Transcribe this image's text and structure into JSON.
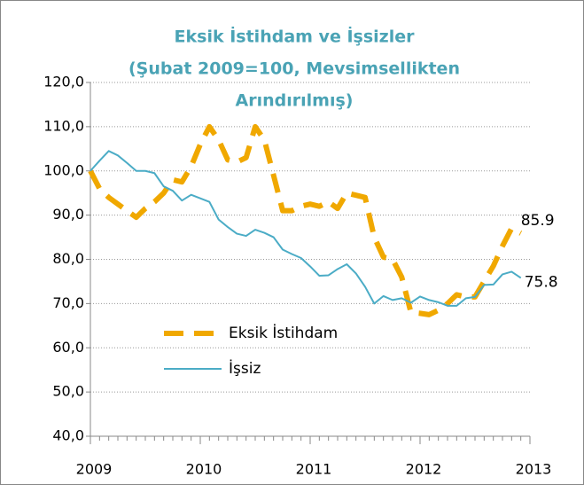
{
  "chart_data": {
    "type": "line",
    "title": [
      "Eksik İstihdam ve İşsizler",
      "(Şubat 2009=100, Mevsimsellikten",
      "Arındırılmış)"
    ],
    "x": [
      2009,
      2009.083,
      2009.167,
      2009.25,
      2009.333,
      2009.417,
      2009.5,
      2009.583,
      2009.667,
      2009.75,
      2009.833,
      2009.917,
      2010,
      2010.083,
      2010.167,
      2010.25,
      2010.333,
      2010.417,
      2010.5,
      2010.583,
      2010.667,
      2010.75,
      2010.833,
      2010.917,
      2011,
      2011.083,
      2011.167,
      2011.25,
      2011.333,
      2011.417,
      2011.5,
      2011.583,
      2011.667,
      2011.75,
      2011.833,
      2011.917,
      2012,
      2012.083,
      2012.167,
      2012.25,
      2012.333,
      2012.417,
      2012.5,
      2012.583,
      2012.667,
      2012.75,
      2012.833,
      2012.917
    ],
    "series": [
      {
        "name": "Eksik İstihdam",
        "color": "#f0a800",
        "dashed": true,
        "values": [
          100,
          96,
          94,
          92.5,
          91,
          89.5,
          91.5,
          93,
          95,
          98,
          97.5,
          101,
          106,
          110,
          107,
          102.5,
          102,
          103,
          110,
          107,
          99,
          91,
          91,
          92,
          92.5,
          92,
          93,
          91.5,
          95,
          94.5,
          94,
          85,
          80.5,
          80,
          76,
          68,
          67.8,
          67.5,
          68.5,
          70,
          72,
          71.5,
          71.5,
          75,
          78.5,
          83,
          87,
          85.9
        ]
      },
      {
        "name": "İşsiz",
        "color": "#4bacc6",
        "dashed": false,
        "values": [
          100,
          102.3,
          104.5,
          103.5,
          101.8,
          100,
          100,
          99.5,
          96.5,
          95.5,
          93.3,
          94.6,
          93.8,
          93,
          89,
          87.3,
          85.8,
          85.3,
          86.7,
          86,
          85,
          82.2,
          81.2,
          80.3,
          78.4,
          76.3,
          76.4,
          77.8,
          78.9,
          76.8,
          73.8,
          70,
          71.7,
          70.8,
          71.2,
          70.2,
          71.6,
          70.8,
          70.3,
          69.5,
          69.5,
          71.2,
          71.5,
          74.2,
          74.3,
          76.6,
          77.2,
          75.8
        ]
      }
    ],
    "xlim": [
      2009,
      2013
    ],
    "xticks": [
      2009,
      2010,
      2011,
      2012,
      2013
    ],
    "ylim": [
      40,
      120
    ],
    "yticks": [
      {
        "value": 40,
        "label": "40,0"
      },
      {
        "value": 50,
        "label": "50,0"
      },
      {
        "value": 60,
        "label": "60,0"
      },
      {
        "value": 70,
        "label": "70,0"
      },
      {
        "value": 80,
        "label": "80,0"
      },
      {
        "value": 90,
        "label": "90,0"
      },
      {
        "value": 100,
        "label": "100,0"
      },
      {
        "value": 110,
        "label": "110,0"
      },
      {
        "value": 120,
        "label": "120,0"
      }
    ],
    "grid": true,
    "legend": "lower left"
  }
}
